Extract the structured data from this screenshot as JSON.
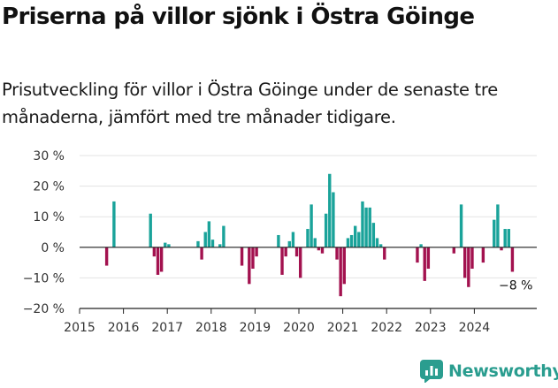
{
  "title": "Priserna på villor sjönk i Östra Göinge",
  "subtitle": "Prisutveckling för villor i Östra Göinge under de senaste tre månaderna, jämfört med tre månader tidigare.",
  "brand": {
    "name": "Newsworthy",
    "color": "#2a9d8f"
  },
  "colors": {
    "positive": "#1aa39a",
    "negative": "#a3124f",
    "grid": "#e3e3e3",
    "axis": "#222222"
  },
  "chart_data": {
    "type": "bar",
    "xlabel": "",
    "ylabel": "",
    "ylim": [
      -20,
      30
    ],
    "y_ticks": [
      {
        "value": 30,
        "label": "30 %"
      },
      {
        "value": 20,
        "label": "20 %"
      },
      {
        "value": 10,
        "label": "10 %"
      },
      {
        "value": 0,
        "label": "0 %"
      },
      {
        "value": -10,
        "label": "−10 %"
      },
      {
        "value": -20,
        "label": "−20 %"
      }
    ],
    "x_ticks": [
      "2015",
      "2016",
      "2017",
      "2018",
      "2019",
      "2020",
      "2021",
      "2022",
      "2023",
      "2024"
    ],
    "annotation": "−8 %",
    "bars": [
      {
        "date": "2015-08",
        "value": -6
      },
      {
        "date": "2015-10",
        "value": 15
      },
      {
        "date": "2016-08",
        "value": 11
      },
      {
        "date": "2016-09",
        "value": -3
      },
      {
        "date": "2016-10",
        "value": -9
      },
      {
        "date": "2016-11",
        "value": -8
      },
      {
        "date": "2016-12",
        "value": 1.5
      },
      {
        "date": "2017-01",
        "value": 1
      },
      {
        "date": "2017-09",
        "value": 2
      },
      {
        "date": "2017-10",
        "value": -4
      },
      {
        "date": "2017-11",
        "value": 5
      },
      {
        "date": "2017-12",
        "value": 8.5
      },
      {
        "date": "2018-01",
        "value": 2.5
      },
      {
        "date": "2018-03",
        "value": 1
      },
      {
        "date": "2018-04",
        "value": 7
      },
      {
        "date": "2018-09",
        "value": -6
      },
      {
        "date": "2018-11",
        "value": -12
      },
      {
        "date": "2018-12",
        "value": -7
      },
      {
        "date": "2019-01",
        "value": -3
      },
      {
        "date": "2019-07",
        "value": 4
      },
      {
        "date": "2019-08",
        "value": -9
      },
      {
        "date": "2019-09",
        "value": -3
      },
      {
        "date": "2019-10",
        "value": 2
      },
      {
        "date": "2019-11",
        "value": 5
      },
      {
        "date": "2019-12",
        "value": -3
      },
      {
        "date": "2020-01",
        "value": -10
      },
      {
        "date": "2020-03",
        "value": 6
      },
      {
        "date": "2020-04",
        "value": 14
      },
      {
        "date": "2020-05",
        "value": 3
      },
      {
        "date": "2020-06",
        "value": -1
      },
      {
        "date": "2020-07",
        "value": -2
      },
      {
        "date": "2020-08",
        "value": 11
      },
      {
        "date": "2020-09",
        "value": 24
      },
      {
        "date": "2020-10",
        "value": 18
      },
      {
        "date": "2020-11",
        "value": -4
      },
      {
        "date": "2020-12",
        "value": -16
      },
      {
        "date": "2021-01",
        "value": -12
      },
      {
        "date": "2021-02",
        "value": 3
      },
      {
        "date": "2021-03",
        "value": 4
      },
      {
        "date": "2021-04",
        "value": 7
      },
      {
        "date": "2021-05",
        "value": 5
      },
      {
        "date": "2021-06",
        "value": 15
      },
      {
        "date": "2021-07",
        "value": 13
      },
      {
        "date": "2021-08",
        "value": 13
      },
      {
        "date": "2021-09",
        "value": 8
      },
      {
        "date": "2021-10",
        "value": 3
      },
      {
        "date": "2021-11",
        "value": 1
      },
      {
        "date": "2021-12",
        "value": -4
      },
      {
        "date": "2022-09",
        "value": -5
      },
      {
        "date": "2022-10",
        "value": 1
      },
      {
        "date": "2022-11",
        "value": -11
      },
      {
        "date": "2022-12",
        "value": -7
      },
      {
        "date": "2023-07",
        "value": -2
      },
      {
        "date": "2023-09",
        "value": 14
      },
      {
        "date": "2023-10",
        "value": -10
      },
      {
        "date": "2023-11",
        "value": -13
      },
      {
        "date": "2023-12",
        "value": -7
      },
      {
        "date": "2024-03",
        "value": -5
      },
      {
        "date": "2024-06",
        "value": 9
      },
      {
        "date": "2024-07",
        "value": 14
      },
      {
        "date": "2024-08",
        "value": -1
      },
      {
        "date": "2024-09",
        "value": 6
      },
      {
        "date": "2024-10",
        "value": 6
      },
      {
        "date": "2024-11",
        "value": -8
      }
    ]
  }
}
